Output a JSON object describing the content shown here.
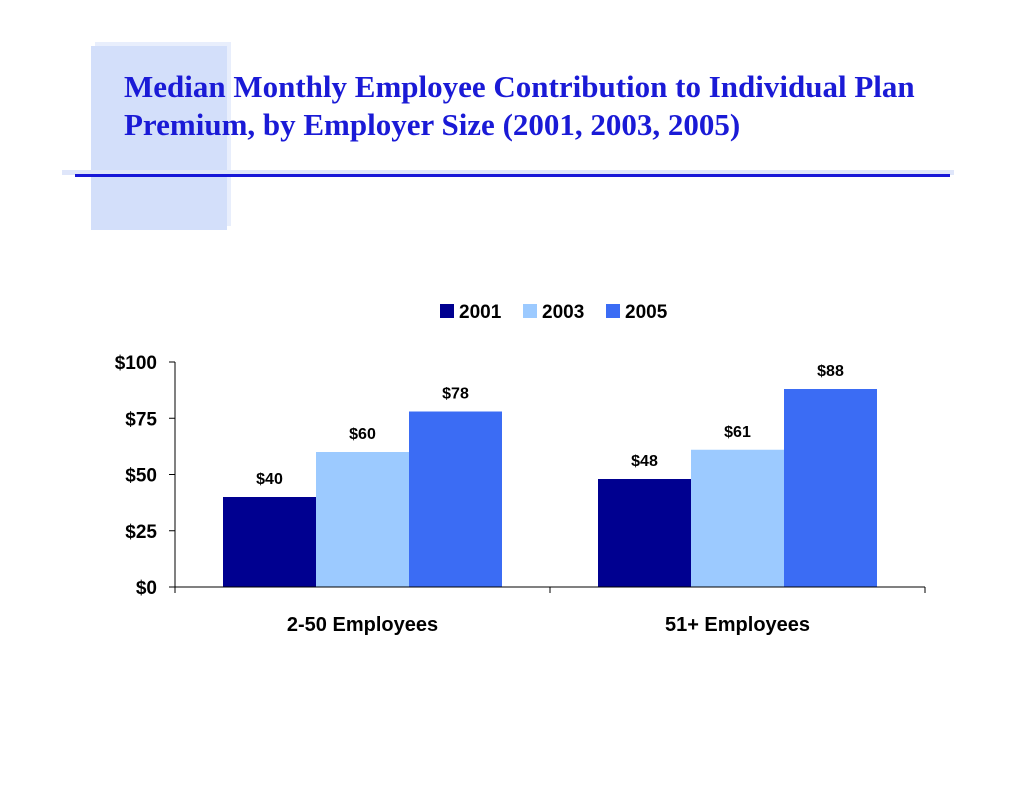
{
  "title": {
    "line1": "Median Monthly Employee Contribution to Individual Plan",
    "line2": "Premium, by Employer Size (2001, 2003, 2005)"
  },
  "chart_data": {
    "type": "bar",
    "title": "Median Monthly Employee Contribution to Individual Plan Premium, by Employer Size (2001, 2003, 2005)",
    "categories": [
      "2-50 Employees",
      "51+ Employees"
    ],
    "series": [
      {
        "name": "2001",
        "color": "#000090",
        "values": [
          40,
          48
        ],
        "labels": [
          "$40",
          "$48"
        ]
      },
      {
        "name": "2003",
        "color": "#9ccaff",
        "values": [
          60,
          61
        ],
        "labels": [
          "$60",
          "$61"
        ]
      },
      {
        "name": "2005",
        "color": "#3b6cf4",
        "values": [
          78,
          88
        ],
        "labels": [
          "$78",
          "$88"
        ]
      }
    ],
    "ylim": [
      0,
      100
    ],
    "yticks": [
      0,
      25,
      50,
      75,
      100
    ],
    "ytick_labels": [
      "$0",
      "$25",
      "$50",
      "$75",
      "$100"
    ],
    "xlabel": "",
    "ylabel": "",
    "grid": false,
    "legend": "top-center"
  }
}
